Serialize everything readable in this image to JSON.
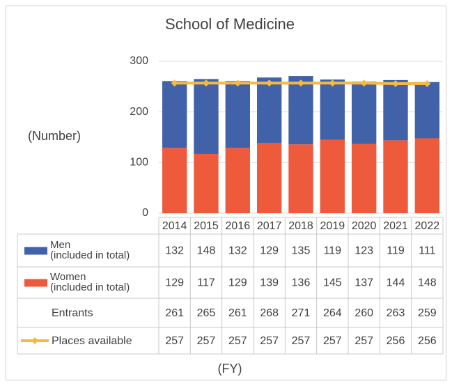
{
  "chart_data": {
    "type": "bar",
    "title": "School of Medicine",
    "ylabel": "(Number)",
    "xlabel": "(FY)",
    "categories": [
      "2014",
      "2015",
      "2016",
      "2017",
      "2018",
      "2019",
      "2020",
      "2021",
      "2022"
    ],
    "stacked": true,
    "series": [
      {
        "name": "Women\n(included in total)",
        "color": "#ee5a3c",
        "values": [
          129,
          117,
          129,
          139,
          136,
          145,
          137,
          144,
          148
        ]
      },
      {
        "name": "Men\n(included in total)",
        "color": "#4162a9",
        "values": [
          132,
          148,
          132,
          129,
          135,
          119,
          123,
          119,
          111
        ]
      },
      {
        "name": "Places available",
        "color": "#f5b942",
        "type": "line",
        "values": [
          257,
          257,
          257,
          257,
          257,
          257,
          257,
          256,
          256
        ]
      }
    ],
    "totals": {
      "name": "Entrants",
      "values": [
        261,
        265,
        261,
        268,
        271,
        264,
        260,
        263,
        259
      ]
    },
    "ylim": [
      0,
      300
    ],
    "yticks": [
      0,
      100,
      200,
      300
    ],
    "grid": true
  }
}
